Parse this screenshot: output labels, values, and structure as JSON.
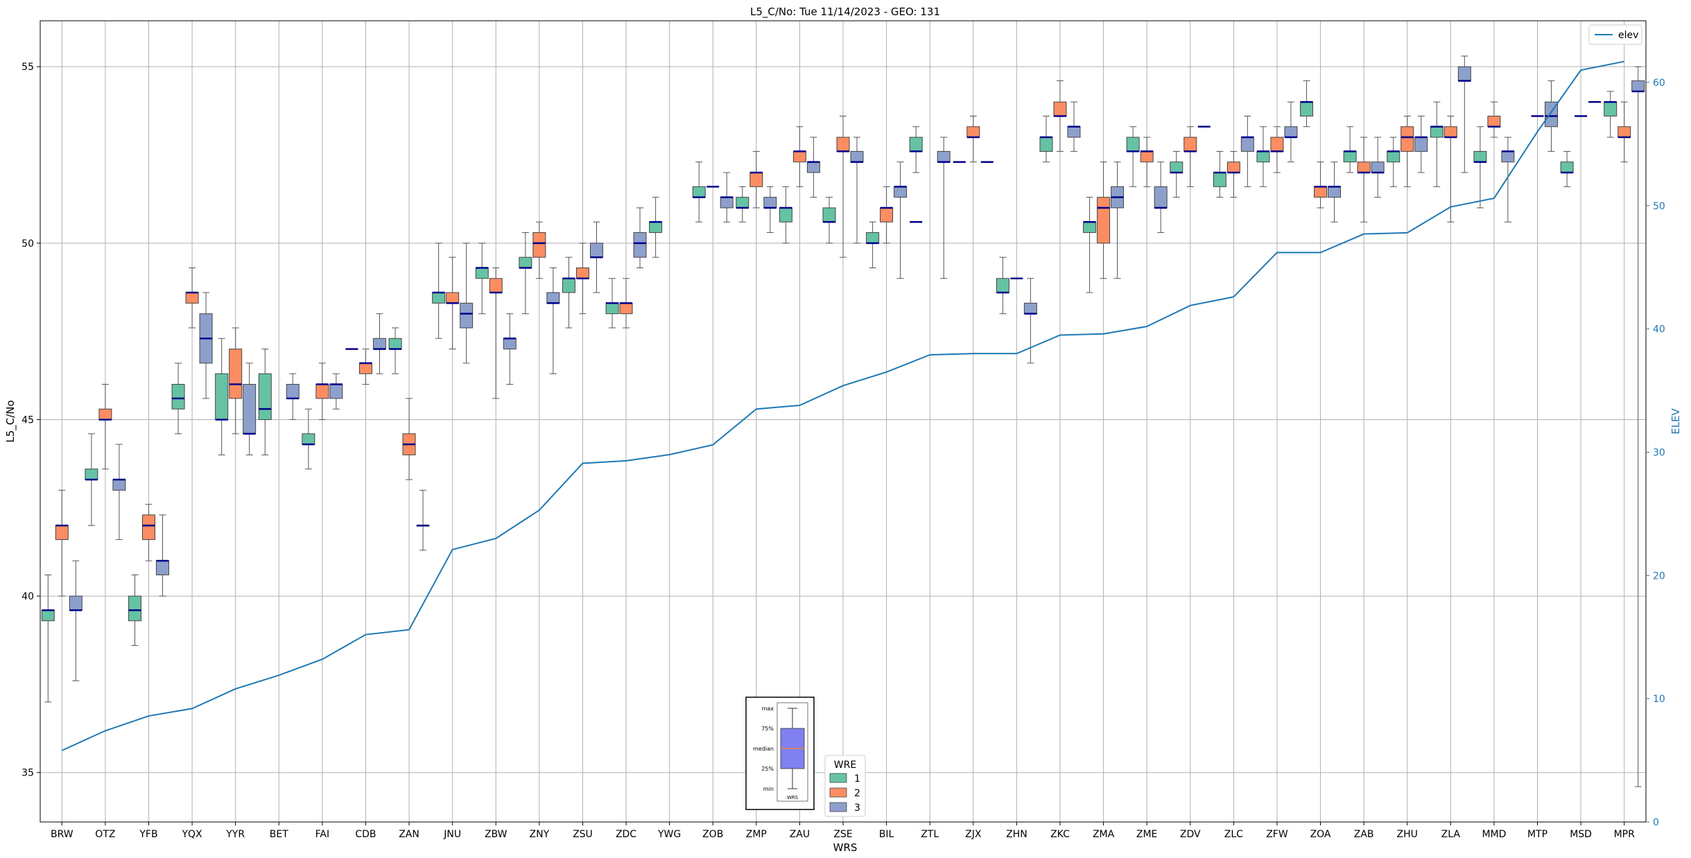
{
  "chart_data": {
    "type": "box",
    "title": "L5_C/No: Tue 11/14/2023 - GEO: 131",
    "xlabel": "WRS",
    "ylabel": "L5_C/No",
    "ylabel_right": "ELEV",
    "ylim": [
      33.6,
      56.3
    ],
    "ylim_right": [
      0,
      65
    ],
    "yticks": [
      35,
      40,
      45,
      50,
      55
    ],
    "yticks_right": [
      0,
      10,
      20,
      30,
      40,
      50,
      60
    ],
    "grid": true,
    "categories": [
      "BRW",
      "OTZ",
      "YFB",
      "YQX",
      "YYR",
      "BET",
      "FAI",
      "CDB",
      "ZAN",
      "JNU",
      "ZBW",
      "ZNY",
      "ZSU",
      "ZDC",
      "YWG",
      "ZOB",
      "ZMP",
      "ZAU",
      "ZSE",
      "BIL",
      "ZTL",
      "ZJX",
      "ZHN",
      "ZKC",
      "ZMA",
      "ZME",
      "ZDV",
      "ZLC",
      "ZFW",
      "ZOA",
      "ZAB",
      "ZHU",
      "ZLA",
      "MMD",
      "MTP",
      "MSD",
      "MPR"
    ],
    "series": [
      {
        "name": "1",
        "color": "#66c2a5",
        "boxes": [
          [
            37.0,
            39.3,
            39.6,
            39.6,
            40.6
          ],
          [
            42.0,
            43.3,
            43.3,
            43.6,
            44.6
          ],
          [
            38.6,
            39.3,
            39.6,
            40.0,
            40.6
          ],
          [
            44.6,
            45.3,
            45.6,
            46.0,
            46.6
          ],
          [
            44.0,
            45.0,
            45.0,
            46.3,
            47.3
          ],
          [
            44.0,
            45.0,
            45.3,
            46.3,
            47.0
          ],
          [
            43.6,
            44.3,
            44.3,
            44.6,
            45.3
          ],
          null,
          [
            46.3,
            47.0,
            47.0,
            47.3,
            47.6
          ],
          [
            47.3,
            48.3,
            48.6,
            48.6,
            50.0
          ],
          [
            48.0,
            49.0,
            49.3,
            49.3,
            50.0
          ],
          [
            48.0,
            49.3,
            49.3,
            49.6,
            50.3
          ],
          [
            47.6,
            48.6,
            49.0,
            49.0,
            49.6
          ],
          [
            47.6,
            48.0,
            48.3,
            48.3,
            49.0
          ],
          [
            49.6,
            50.3,
            50.6,
            50.6,
            51.3
          ],
          [
            50.6,
            51.3,
            51.3,
            51.6,
            52.3
          ],
          [
            50.6,
            51.0,
            51.0,
            51.3,
            51.6
          ],
          [
            50.0,
            50.6,
            51.0,
            51.0,
            51.6
          ],
          [
            50.0,
            50.6,
            50.6,
            51.0,
            51.3
          ],
          [
            49.3,
            50.0,
            50.0,
            50.3,
            50.6
          ],
          [
            52.0,
            52.6,
            52.6,
            53.0,
            53.3
          ],
          null,
          [
            48.0,
            48.6,
            48.6,
            49.0,
            49.6
          ],
          [
            52.3,
            52.6,
            53.0,
            53.0,
            53.6
          ],
          [
            48.6,
            50.3,
            50.6,
            50.6,
            51.3
          ],
          [
            51.6,
            52.6,
            52.6,
            53.0,
            53.3
          ],
          [
            51.3,
            52.0,
            52.0,
            52.3,
            52.6
          ],
          [
            51.3,
            51.6,
            52.0,
            52.0,
            52.6
          ],
          [
            51.6,
            52.3,
            52.6,
            52.6,
            53.3
          ],
          [
            53.3,
            53.6,
            54.0,
            54.0,
            54.6
          ],
          [
            52.0,
            52.3,
            52.6,
            52.6,
            53.3
          ],
          [
            51.6,
            52.3,
            52.6,
            52.6,
            53.0
          ],
          [
            51.6,
            53.0,
            53.3,
            53.3,
            54.0
          ],
          [
            51.0,
            52.3,
            52.3,
            52.6,
            53.3
          ],
          null,
          [
            51.6,
            52.0,
            52.0,
            52.3,
            52.6
          ],
          [
            53.0,
            53.6,
            54.0,
            54.0,
            54.3
          ]
        ]
      },
      {
        "name": "2",
        "color": "#fc8d62",
        "boxes": [
          [
            40.0,
            41.6,
            42.0,
            42.0,
            43.0
          ],
          [
            43.6,
            45.0,
            45.0,
            45.3,
            46.0
          ],
          [
            41.0,
            41.6,
            42.0,
            42.3,
            42.6
          ],
          [
            47.6,
            48.3,
            48.6,
            48.6,
            49.3
          ],
          [
            44.6,
            45.6,
            46.0,
            47.0,
            47.6
          ],
          null,
          [
            45.0,
            45.6,
            46.0,
            46.0,
            46.6
          ],
          [
            46.0,
            46.3,
            46.6,
            46.6,
            47.0
          ],
          [
            43.3,
            44.0,
            44.3,
            44.6,
            45.6
          ],
          [
            47.0,
            48.3,
            48.3,
            48.6,
            49.6
          ],
          [
            45.6,
            48.6,
            48.6,
            49.0,
            49.3
          ],
          [
            49.0,
            49.6,
            50.0,
            50.3,
            50.6
          ],
          [
            48.0,
            49.0,
            49.0,
            49.3,
            50.0
          ],
          [
            47.6,
            48.0,
            48.3,
            48.3,
            49.0
          ],
          null,
          null,
          [
            51.0,
            51.6,
            52.0,
            52.0,
            52.6
          ],
          [
            51.6,
            52.3,
            52.6,
            52.6,
            53.3
          ],
          [
            49.6,
            52.6,
            52.6,
            53.0,
            53.6
          ],
          [
            50.0,
            50.6,
            51.0,
            51.0,
            51.6
          ],
          null,
          [
            52.3,
            53.0,
            53.0,
            53.3,
            53.6
          ],
          null,
          [
            52.6,
            53.6,
            53.6,
            54.0,
            54.6
          ],
          [
            49.0,
            50.0,
            51.0,
            51.3,
            52.3
          ],
          [
            51.6,
            52.3,
            52.6,
            52.6,
            53.0
          ],
          [
            51.6,
            52.6,
            52.6,
            53.0,
            53.3
          ],
          [
            51.3,
            52.0,
            52.0,
            52.3,
            52.6
          ],
          [
            52.0,
            52.6,
            52.6,
            53.0,
            53.3
          ],
          [
            51.0,
            51.3,
            51.6,
            51.6,
            52.3
          ],
          [
            50.6,
            52.0,
            52.0,
            52.3,
            53.0
          ],
          [
            51.6,
            52.6,
            53.0,
            53.3,
            53.6
          ],
          [
            50.6,
            53.0,
            53.0,
            53.3,
            53.6
          ],
          [
            53.0,
            53.3,
            53.3,
            53.6,
            54.0
          ],
          null,
          null,
          [
            52.3,
            53.0,
            53.0,
            53.3,
            54.0
          ]
        ]
      },
      {
        "name": "3",
        "color": "#8da0cb",
        "boxes": [
          [
            37.6,
            39.6,
            39.6,
            40.0,
            41.0
          ],
          [
            41.6,
            43.0,
            43.3,
            43.3,
            44.3
          ],
          [
            40.0,
            40.6,
            41.0,
            41.0,
            42.3
          ],
          [
            45.6,
            46.6,
            47.3,
            48.0,
            48.6
          ],
          [
            44.0,
            44.6,
            44.6,
            46.0,
            46.6
          ],
          [
            45.0,
            45.6,
            45.6,
            46.0,
            46.3
          ],
          [
            45.3,
            45.6,
            46.0,
            46.0,
            46.3
          ],
          [
            46.3,
            47.0,
            47.0,
            47.3,
            48.0
          ],
          [
            41.3,
            42.0,
            42.0,
            42.0,
            43.0
          ],
          [
            46.6,
            47.6,
            48.0,
            48.3,
            50.0
          ],
          [
            46.0,
            47.0,
            47.3,
            47.3,
            48.0
          ],
          [
            46.3,
            48.3,
            48.3,
            48.6,
            49.3
          ],
          [
            48.6,
            49.6,
            49.6,
            50.0,
            50.6
          ],
          [
            49.3,
            49.6,
            50.0,
            50.3,
            51.0
          ],
          null,
          [
            50.6,
            51.0,
            51.3,
            51.3,
            52.0
          ],
          [
            50.3,
            51.0,
            51.0,
            51.3,
            51.6
          ],
          [
            51.3,
            52.0,
            52.3,
            52.3,
            53.0
          ],
          [
            50.0,
            52.3,
            52.3,
            52.6,
            53.0
          ],
          [
            49.0,
            51.3,
            51.6,
            51.6,
            52.3
          ],
          [
            49.0,
            52.3,
            52.3,
            52.6,
            53.0
          ],
          null,
          [
            46.6,
            48.0,
            48.0,
            48.3,
            49.0
          ],
          [
            52.6,
            53.0,
            53.3,
            53.3,
            54.0
          ],
          [
            49.0,
            51.0,
            51.3,
            51.6,
            52.3
          ],
          [
            50.3,
            51.0,
            51.0,
            51.6,
            52.3
          ],
          null,
          [
            51.6,
            52.6,
            53.0,
            53.0,
            53.6
          ],
          [
            52.3,
            53.0,
            53.0,
            53.3,
            54.0
          ],
          [
            50.6,
            51.3,
            51.6,
            51.6,
            52.3
          ],
          [
            51.3,
            52.0,
            52.0,
            52.3,
            53.0
          ],
          [
            52.0,
            52.6,
            53.0,
            53.0,
            53.6
          ],
          [
            52.0,
            54.6,
            54.6,
            55.0,
            55.3
          ],
          [
            50.6,
            52.3,
            52.6,
            52.6,
            53.0
          ],
          [
            52.6,
            53.3,
            53.6,
            54.0,
            54.6
          ],
          null,
          [
            34.6,
            54.3,
            54.3,
            54.6,
            55.0
          ]
        ]
      }
    ],
    "single_marks": [
      {
        "station": "CDB",
        "series": "1",
        "value": 47.0
      },
      {
        "station": "ZDV",
        "series": "3",
        "value": 53.3
      },
      {
        "station": "ZTL",
        "series": "1",
        "value": 50.6
      },
      {
        "station": "ZJX",
        "series": "1",
        "value": 52.3
      },
      {
        "station": "ZHN",
        "series": "2",
        "value": 49.0
      },
      {
        "station": "ZOB",
        "series": "2",
        "value": 51.6
      },
      {
        "station": "MTP",
        "series": "2",
        "value": 53.6
      },
      {
        "station": "MSD",
        "series": "2",
        "value": 53.6
      },
      {
        "station": "MSD",
        "series": "3",
        "value": 54.0
      },
      {
        "station": "ZJX",
        "series": "3",
        "value": 52.3
      }
    ],
    "elev_line": {
      "name": "elev",
      "color": "#1f77b4",
      "values": [
        5.8,
        7.4,
        8.6,
        9.2,
        10.8,
        11.9,
        13.2,
        15.2,
        15.6,
        22.1,
        23.0,
        25.3,
        29.1,
        29.3,
        29.8,
        30.6,
        33.5,
        33.8,
        35.4,
        36.5,
        37.9,
        38.0,
        38.0,
        39.5,
        39.6,
        40.2,
        41.9,
        42.6,
        46.2,
        46.2,
        47.7,
        47.8,
        49.9,
        50.6,
        56.0,
        61.0,
        61.7
      ]
    },
    "legends": [
      {
        "title": "",
        "entries": [
          "elev"
        ],
        "placement": "top-right"
      },
      {
        "title": "WRE",
        "entries": [
          "1",
          "2",
          "3"
        ],
        "placement": "lower-center"
      }
    ],
    "key_box": {
      "labels": [
        "max",
        "75%",
        "median",
        "25%",
        "min"
      ],
      "axis_label": "WRS",
      "placement": "lower-center"
    }
  }
}
